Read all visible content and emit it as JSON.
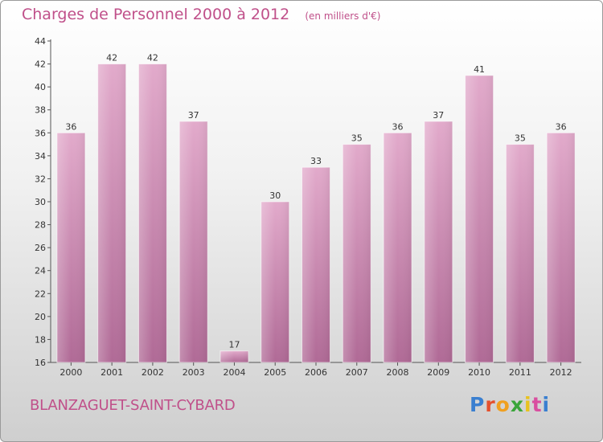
{
  "chart_data": {
    "type": "bar",
    "title": "Charges de Personnel 2000 à 2012",
    "subtitle": "(en milliers d'€)",
    "categories": [
      "2000",
      "2001",
      "2002",
      "2003",
      "2004",
      "2005",
      "2006",
      "2007",
      "2008",
      "2009",
      "2010",
      "2011",
      "2012"
    ],
    "values": [
      36,
      42,
      42,
      37,
      17,
      30,
      33,
      35,
      36,
      37,
      41,
      35,
      36
    ],
    "ylim": [
      16,
      44
    ],
    "yticks": [
      16,
      18,
      20,
      22,
      24,
      26,
      28,
      30,
      32,
      34,
      36,
      38,
      40,
      42,
      44
    ],
    "grid": false,
    "bar_color_top": "#e2aacb",
    "bar_color_bottom": "#b06a96",
    "text_color": "#c0508a"
  },
  "footer": {
    "location": "BLANZAGUET-SAINT-CYBARD",
    "logo_text": "Proxiti",
    "logo_colors": [
      "#3a7fd0",
      "#e5502d",
      "#f0a020",
      "#3aa53a",
      "#e8c220",
      "#d94fa0",
      "#3a7fd0"
    ]
  }
}
